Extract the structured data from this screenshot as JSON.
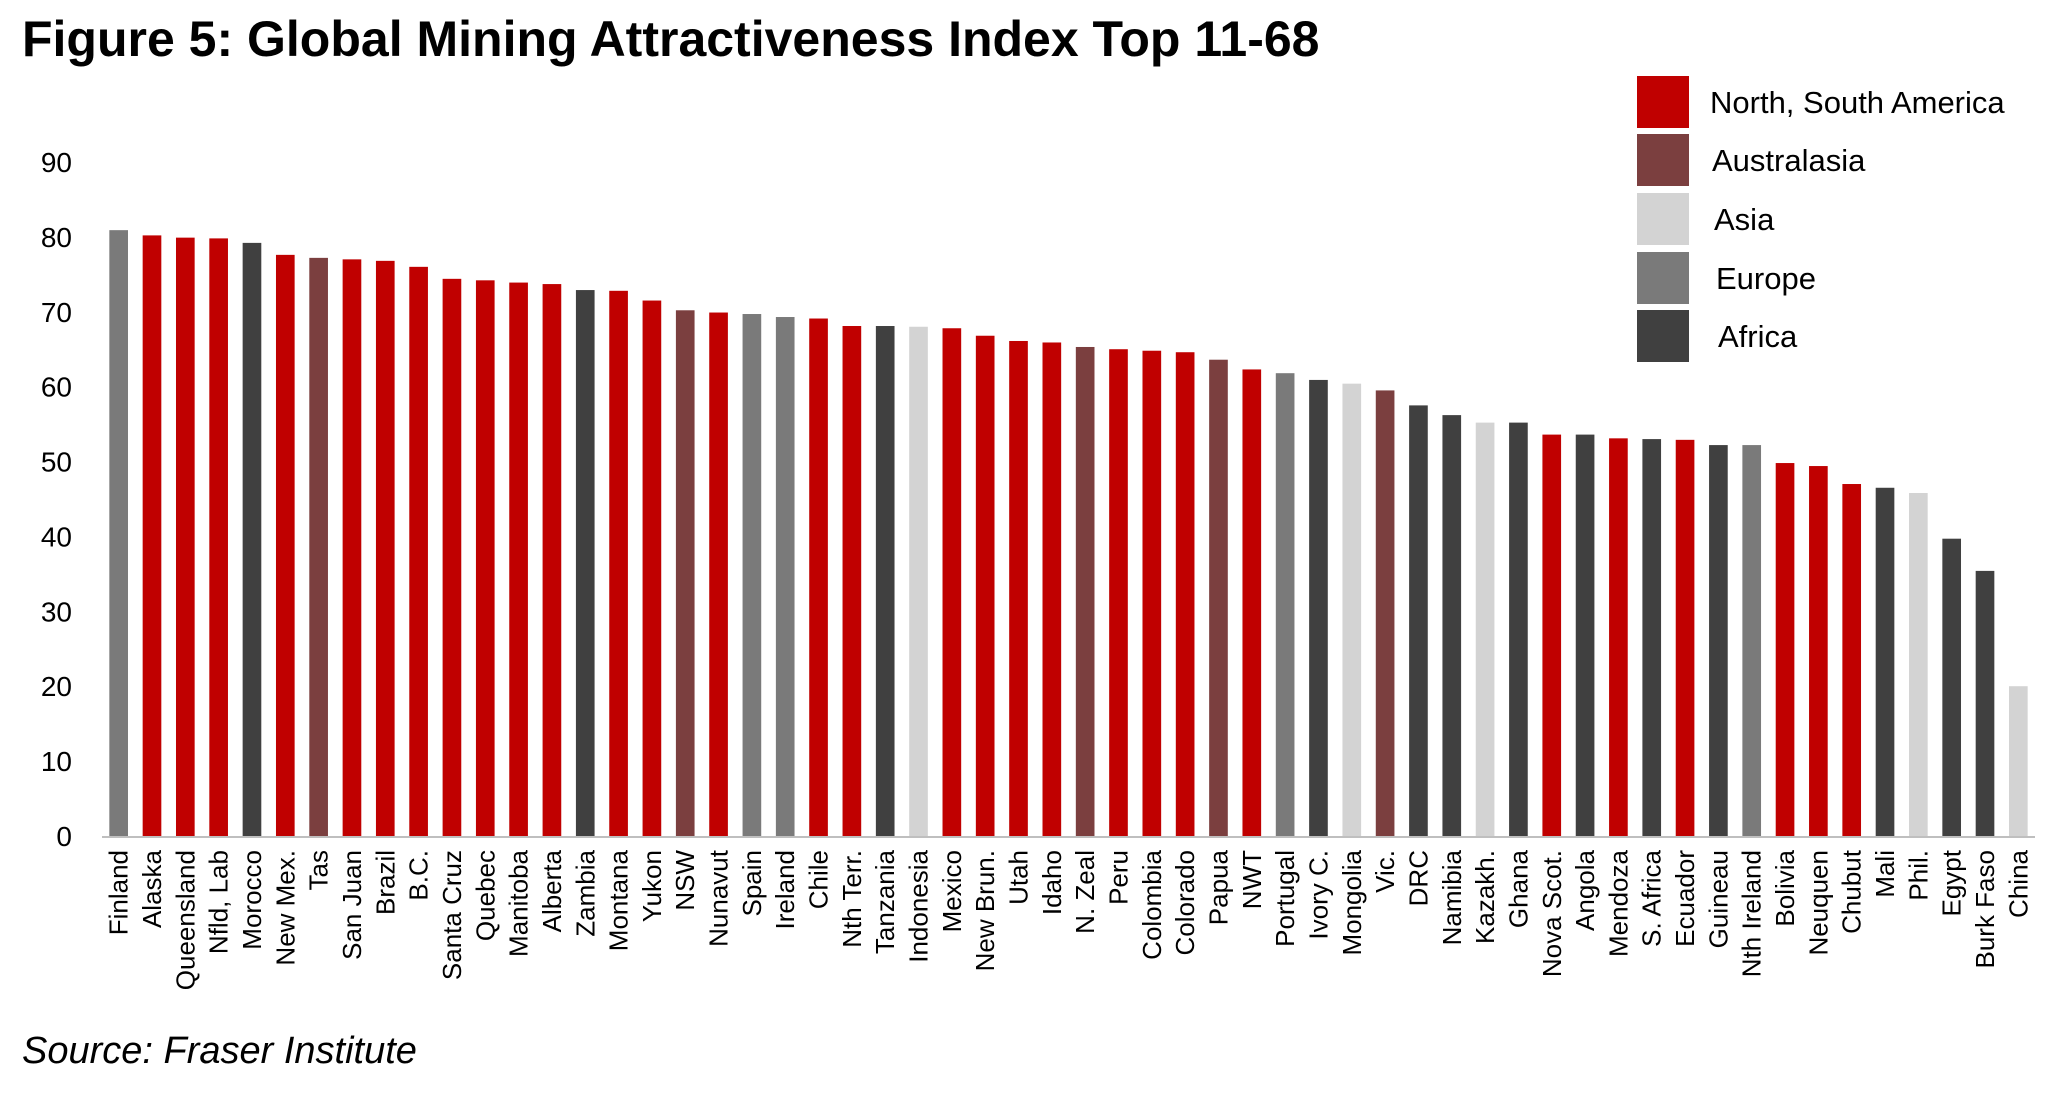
{
  "chart_data": {
    "type": "bar",
    "title": "Figure 5: Global Mining Attractiveness Index Top 11-68",
    "source": "Source: Fraser Institute",
    "xlabel": "",
    "ylabel": "",
    "ylim": [
      0,
      90
    ],
    "yticks": [
      "0",
      "10",
      "20",
      "30",
      "40",
      "50",
      "60",
      "70",
      "80",
      "90"
    ],
    "grid": false,
    "legend_position": "top-right",
    "region_colors": {
      "North, South America": "#C00000",
      "Australasia": "#7B3F3F",
      "Asia": "#D3D3D3",
      "Europe": "#7A7A7A",
      "Africa": "#404040"
    },
    "legend": [
      "North, South America",
      "Australasia",
      "Asia",
      "Europe",
      "Africa"
    ],
    "categories": [
      "Finland",
      "Alaska",
      "Queensland",
      "Nfld, Lab",
      "Morocco",
      "New Mex.",
      "Tas",
      "San Juan",
      "Brazil",
      "B.C.",
      "Santa Cruz",
      "Quebec",
      "Manitoba",
      "Alberta",
      "Zambia",
      "Montana",
      "Yukon",
      "NSW",
      "Nunavut",
      "Spain",
      "Ireland",
      "Chile",
      "Nth Terr.",
      "Tanzania",
      "Indonesia",
      "Mexico",
      "New Brun.",
      "Utah",
      "Idaho",
      "N. Zeal",
      "Peru",
      "Colombia",
      "Colorado",
      "Papua",
      "NWT",
      "Portugal",
      "Ivory C.",
      "Mongolia",
      "Vic.",
      "DRC",
      "Namibia",
      "Kazakh.",
      "Ghana",
      "Nova Scot.",
      "Angola",
      "Mendoza",
      "S. Africa",
      "Ecuador",
      "Guineau",
      "Nth Ireland",
      "Bolivia",
      "Neuquen",
      "Chubut",
      "Mali",
      "Phil.",
      "Egypt",
      "Burk Faso",
      "China"
    ],
    "values": [
      80.9,
      80.2,
      79.9,
      79.8,
      79.2,
      77.6,
      77.2,
      77.0,
      76.8,
      76.0,
      74.4,
      74.2,
      73.9,
      73.7,
      72.9,
      72.8,
      71.5,
      70.2,
      69.9,
      69.7,
      69.3,
      69.1,
      68.1,
      68.1,
      68.0,
      67.8,
      66.8,
      66.1,
      65.9,
      65.3,
      65.0,
      64.8,
      64.6,
      63.6,
      62.3,
      61.8,
      60.9,
      60.4,
      59.5,
      57.5,
      56.2,
      55.2,
      55.2,
      53.6,
      53.6,
      53.1,
      53.0,
      52.9,
      52.2,
      52.2,
      49.8,
      49.4,
      47.0,
      46.5,
      45.8,
      39.7,
      35.4,
      20.0
    ],
    "regions": [
      "Europe",
      "North, South America",
      "North, South America",
      "North, South America",
      "Africa",
      "North, South America",
      "Australasia",
      "North, South America",
      "North, South America",
      "North, South America",
      "North, South America",
      "North, South America",
      "North, South America",
      "North, South America",
      "Africa",
      "North, South America",
      "North, South America",
      "Australasia",
      "North, South America",
      "Europe",
      "Europe",
      "North, South America",
      "North, South America",
      "Africa",
      "Asia",
      "North, South America",
      "North, South America",
      "North, South America",
      "North, South America",
      "Australasia",
      "North, South America",
      "North, South America",
      "North, South America",
      "Australasia",
      "North, South America",
      "Europe",
      "Africa",
      "Asia",
      "Australasia",
      "Africa",
      "Africa",
      "Asia",
      "Africa",
      "North, South America",
      "Africa",
      "North, South America",
      "Africa",
      "North, South America",
      "Africa",
      "Europe",
      "North, South America",
      "North, South America",
      "North, South America",
      "Africa",
      "Asia",
      "Africa",
      "Africa",
      "Asia"
    ]
  }
}
